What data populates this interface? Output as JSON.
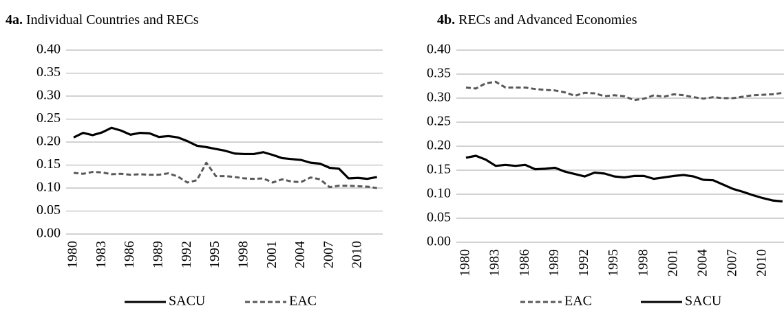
{
  "chart_data": [
    {
      "type": "line",
      "label": "4a.",
      "title": "Individual Countries and RECs",
      "categories": [
        "1980",
        null,
        null,
        "1983",
        null,
        null,
        "1986",
        null,
        null,
        "1989",
        null,
        null,
        "1992",
        null,
        null,
        "1995",
        null,
        null,
        "1998",
        null,
        null,
        "2001",
        null,
        null,
        "2004",
        null,
        null,
        "2007",
        null,
        null,
        "2010",
        null,
        null
      ],
      "series": [
        {
          "name": "SACU",
          "color": "#000000",
          "line_style": "solid",
          "values": [
            0.21,
            0.22,
            0.215,
            0.221,
            0.231,
            0.225,
            0.216,
            0.22,
            0.219,
            0.211,
            0.213,
            0.21,
            0.202,
            0.192,
            0.189,
            0.185,
            0.181,
            0.175,
            0.174,
            0.174,
            0.178,
            0.172,
            0.165,
            0.163,
            0.161,
            0.155,
            0.153,
            0.144,
            0.142,
            0.121,
            0.122,
            0.12,
            0.124
          ]
        },
        {
          "name": "EAC",
          "color": "#595959",
          "line_style": "dashed",
          "values": [
            0.133,
            0.131,
            0.135,
            0.134,
            0.13,
            0.131,
            0.129,
            0.13,
            0.129,
            0.129,
            0.132,
            0.125,
            0.112,
            0.117,
            0.155,
            0.126,
            0.126,
            0.124,
            0.121,
            0.12,
            0.121,
            0.112,
            0.119,
            0.114,
            0.113,
            0.123,
            0.119,
            0.102,
            0.105,
            0.105,
            0.104,
            0.103,
            0.1
          ]
        }
      ],
      "ylim": [
        0,
        0.4
      ],
      "yticks": [
        {
          "value": 0,
          "label": "0.00"
        },
        0.05,
        {
          "value": 0.1,
          "label": "0.10"
        },
        0.15,
        {
          "value": 0.2,
          "label": "0.20"
        },
        0.25,
        {
          "value": 0.3,
          "label": "0.30"
        },
        0.35,
        {
          "value": 0.4,
          "label": "0.40"
        }
      ],
      "grid": true,
      "legend": "bottom"
    },
    {
      "type": "line",
      "label": "4b.",
      "title": "RECs and Advanced Economies",
      "categories": [
        "1980",
        null,
        null,
        "1983",
        null,
        null,
        "1986",
        null,
        null,
        "1989",
        null,
        null,
        "1992",
        null,
        null,
        "1995",
        null,
        null,
        "1998",
        null,
        null,
        "2001",
        null,
        null,
        "2004",
        null,
        null,
        "2007",
        null,
        null,
        "2010",
        null,
        null
      ],
      "series": [
        {
          "name": "EAC",
          "color": "#595959",
          "line_style": "dashed",
          "values": [
            0.322,
            0.32,
            0.331,
            0.334,
            0.322,
            0.322,
            0.322,
            0.319,
            0.317,
            0.316,
            0.312,
            0.305,
            0.311,
            0.31,
            0.304,
            0.306,
            0.304,
            0.296,
            0.299,
            0.306,
            0.303,
            0.308,
            0.306,
            0.302,
            0.299,
            0.302,
            0.3,
            0.3,
            0.303,
            0.306,
            0.307,
            0.308,
            0.311
          ]
        },
        {
          "name": "SACU",
          "color": "#000000",
          "line_style": "solid",
          "values": [
            0.176,
            0.18,
            0.172,
            0.159,
            0.161,
            0.159,
            0.161,
            0.152,
            0.153,
            0.155,
            0.147,
            0.142,
            0.137,
            0.145,
            0.143,
            0.137,
            0.135,
            0.138,
            0.138,
            0.132,
            0.135,
            0.138,
            0.14,
            0.137,
            0.13,
            0.129,
            0.12,
            0.111,
            0.105,
            0.098,
            0.092,
            0.087,
            0.085
          ]
        }
      ],
      "ylim": [
        0,
        0.4
      ],
      "yticks": [
        {
          "value": 0,
          "label": "0.00"
        },
        0.05,
        {
          "value": 0.1,
          "label": "0.10"
        },
        0.15,
        {
          "value": 0.2,
          "label": "0.20"
        },
        0.25,
        {
          "value": 0.3,
          "label": "0.30"
        },
        0.35,
        {
          "value": 0.4,
          "label": "0.40"
        }
      ],
      "grid": true,
      "legend": "bottom"
    }
  ]
}
